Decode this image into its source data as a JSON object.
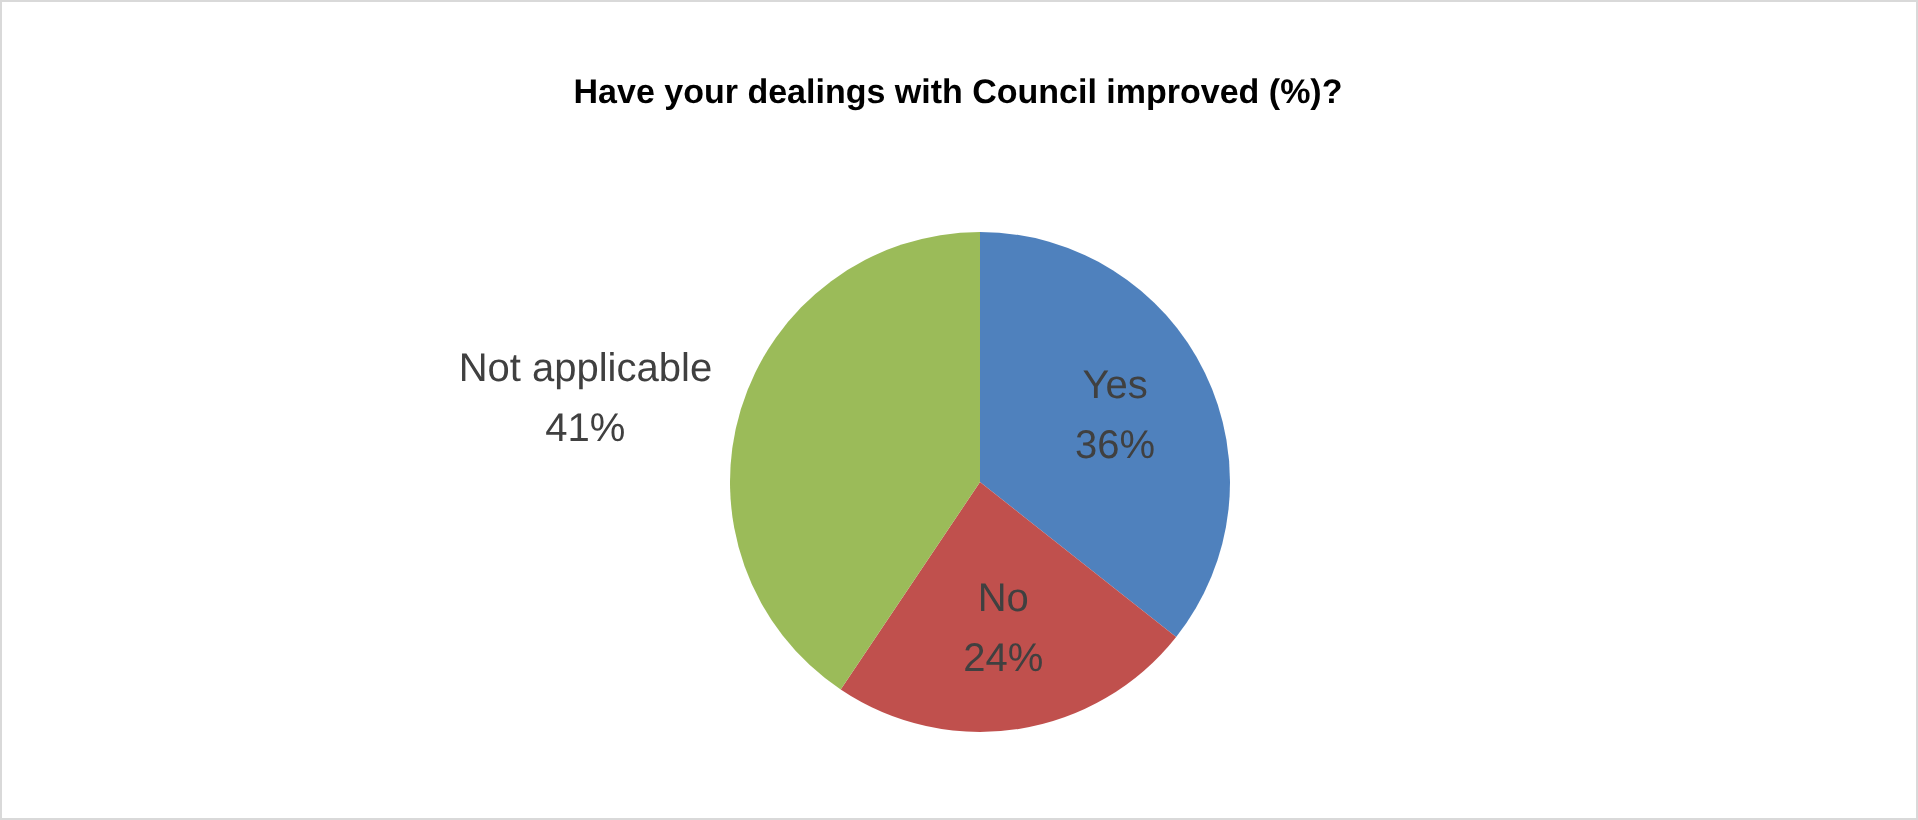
{
  "chart_data": {
    "type": "pie",
    "title": "Have your dealings with Council improved (%)?",
    "categories": [
      "Yes",
      "No",
      "Not applicable"
    ],
    "values": [
      36,
      24,
      41
    ],
    "colors": [
      "#4f81bd",
      "#c0504d",
      "#9bbb59"
    ],
    "value_labels": [
      "36%",
      "24%",
      "41%"
    ],
    "legend": false
  }
}
